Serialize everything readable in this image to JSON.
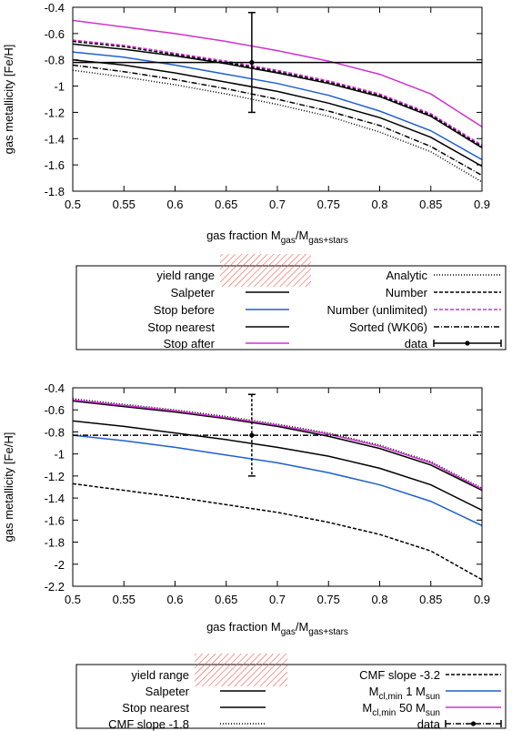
{
  "chart_data": [
    {
      "type": "line",
      "xlabel": "gas fraction",
      "xlabel_math": {
        "M": "M",
        "num_sub": "gas",
        "slash": "/M",
        "den_sub": "gas+stars"
      },
      "ylabel": "gas metallicity [Fe/H]",
      "xlim": [
        0.5,
        0.9
      ],
      "ylim": [
        -1.8,
        -0.4
      ],
      "xticks": [
        "0.5",
        "0.55",
        "0.6",
        "0.65",
        "0.7",
        "0.75",
        "0.8",
        "0.85",
        "0.9"
      ],
      "yticks": [
        "-0.4",
        "-0.6",
        "-0.8",
        "-1",
        "-1.2",
        "-1.4",
        "-1.6",
        "-1.8"
      ],
      "x": [
        0.5,
        0.55,
        0.6,
        0.65,
        0.7,
        0.75,
        0.8,
        0.85,
        0.9
      ],
      "series": [
        {
          "name": "Salpeter",
          "color": "#000000",
          "dash": "",
          "values": [
            -0.68,
            -0.72,
            -0.77,
            -0.83,
            -0.9,
            -0.98,
            -1.08,
            -1.23,
            -1.47
          ]
        },
        {
          "name": "Stop before",
          "color": "#1f5fd0",
          "dash": "",
          "values": [
            -0.74,
            -0.78,
            -0.84,
            -0.91,
            -0.98,
            -1.07,
            -1.19,
            -1.34,
            -1.56
          ]
        },
        {
          "name": "Stop nearest",
          "color": "#000000",
          "dash": "",
          "values": [
            -0.8,
            -0.84,
            -0.9,
            -0.97,
            -1.04,
            -1.13,
            -1.24,
            -1.39,
            -1.61
          ]
        },
        {
          "name": "Stop after",
          "color": "#d030d0",
          "dash": "",
          "values": [
            -0.5,
            -0.55,
            -0.6,
            -0.66,
            -0.73,
            -0.81,
            -0.91,
            -1.06,
            -1.31
          ]
        },
        {
          "name": "Analytic",
          "color": "#000000",
          "dash": "1,2",
          "values": [
            -0.88,
            -0.93,
            -0.99,
            -1.06,
            -1.14,
            -1.23,
            -1.35,
            -1.5,
            -1.73
          ]
        },
        {
          "name": "Number",
          "color": "#000000",
          "dash": "4,2",
          "values": [
            -0.66,
            -0.7,
            -0.76,
            -0.82,
            -0.89,
            -0.97,
            -1.07,
            -1.22,
            -1.46
          ]
        },
        {
          "name": "Number (unlimited)",
          "color": "#d030d0",
          "dash": "4,2",
          "values": [
            -0.65,
            -0.69,
            -0.75,
            -0.81,
            -0.88,
            -0.96,
            -1.06,
            -1.21,
            -1.45
          ]
        },
        {
          "name": "Sorted (WK06)",
          "color": "#000000",
          "dash": "6,2,1,2",
          "values": [
            -0.84,
            -0.89,
            -0.95,
            -1.02,
            -1.1,
            -1.19,
            -1.3,
            -1.46,
            -1.68
          ]
        }
      ],
      "data_point": {
        "name": "data",
        "x": 0.675,
        "y": -0.82,
        "yerr": 0.38,
        "hline": -0.82
      },
      "legend": {
        "placement": "below",
        "left": [
          {
            "label": "yield range",
            "style": "hatch"
          },
          {
            "label": "Salpeter",
            "series": 0
          },
          {
            "label": "Stop before",
            "series": 1
          },
          {
            "label": "Stop nearest",
            "series": 2
          },
          {
            "label": "Stop after",
            "series": 3
          }
        ],
        "right": [
          {
            "label": "Analytic",
            "series": 4
          },
          {
            "label": "Number",
            "series": 5
          },
          {
            "label": "Number (unlimited)",
            "series": 6
          },
          {
            "label": "Sorted (WK06)",
            "series": 7
          },
          {
            "label": "data",
            "style": "errorbar"
          }
        ]
      }
    },
    {
      "type": "line",
      "xlabel": "gas fraction",
      "xlabel_math": {
        "M": "M",
        "num_sub": "gas",
        "slash": "/M",
        "den_sub": "gas+stars"
      },
      "ylabel": "gas metallicity [Fe/H]",
      "xlim": [
        0.5,
        0.9
      ],
      "ylim": [
        -2.2,
        -0.4
      ],
      "xticks": [
        "0.5",
        "0.55",
        "0.6",
        "0.65",
        "0.7",
        "0.75",
        "0.8",
        "0.85",
        "0.9"
      ],
      "yticks": [
        "-0.4",
        "-0.6",
        "-0.8",
        "-1",
        "-1.2",
        "-1.4",
        "-1.6",
        "-1.8",
        "-2",
        "-2.2"
      ],
      "x": [
        0.5,
        0.55,
        0.6,
        0.65,
        0.7,
        0.75,
        0.8,
        0.85,
        0.9
      ],
      "series": [
        {
          "name": "Salpeter",
          "color": "#000000",
          "dash": "",
          "values": [
            -0.52,
            -0.57,
            -0.62,
            -0.68,
            -0.75,
            -0.84,
            -0.95,
            -1.1,
            -1.33
          ]
        },
        {
          "name": "Stop nearest",
          "color": "#000000",
          "dash": "",
          "values": [
            -0.7,
            -0.75,
            -0.81,
            -0.87,
            -0.94,
            -1.02,
            -1.13,
            -1.28,
            -1.51
          ]
        },
        {
          "name": "CMF slope -1.8",
          "color": "#000000",
          "dash": "1,2",
          "values": [
            -0.5,
            -0.55,
            -0.6,
            -0.66,
            -0.73,
            -0.81,
            -0.92,
            -1.07,
            -1.31
          ]
        },
        {
          "name": "CMF slope -3.2",
          "color": "#000000",
          "dash": "4,2",
          "values": [
            -1.27,
            -1.33,
            -1.39,
            -1.46,
            -1.53,
            -1.62,
            -1.73,
            -1.88,
            -2.14
          ]
        },
        {
          "name": "1 M_sun",
          "color": "#1f5fd0",
          "dash": "",
          "values": [
            -0.83,
            -0.88,
            -0.94,
            -1.01,
            -1.08,
            -1.17,
            -1.28,
            -1.43,
            -1.65
          ]
        },
        {
          "name": "50 M_sun",
          "color": "#d030d0",
          "dash": "",
          "values": [
            -0.51,
            -0.56,
            -0.61,
            -0.67,
            -0.74,
            -0.82,
            -0.93,
            -1.08,
            -1.32
          ]
        }
      ],
      "data_point": {
        "name": "data",
        "x": 0.675,
        "y": -0.83,
        "yerr": 0.37,
        "hline": -0.83
      },
      "legend": {
        "placement": "below",
        "left": [
          {
            "label": "yield range",
            "style": "hatch"
          },
          {
            "label": "Salpeter",
            "series": 0
          },
          {
            "label": "Stop nearest",
            "series": 1
          },
          {
            "label": "CMF slope -1.8",
            "series": 2
          }
        ],
        "right": [
          {
            "label": "CMF slope -3.2",
            "series": 3
          },
          {
            "label_math": {
              "M": "M",
              "sub": "cl,min",
              "value": " 1 M",
              "value_sub": "sun"
            },
            "series": 4
          },
          {
            "label_math": {
              "M": "M",
              "sub": "cl,min",
              "value": " 50 M",
              "value_sub": "sun"
            },
            "series": 5
          },
          {
            "label": "data",
            "style": "errorbar"
          }
        ]
      }
    }
  ]
}
